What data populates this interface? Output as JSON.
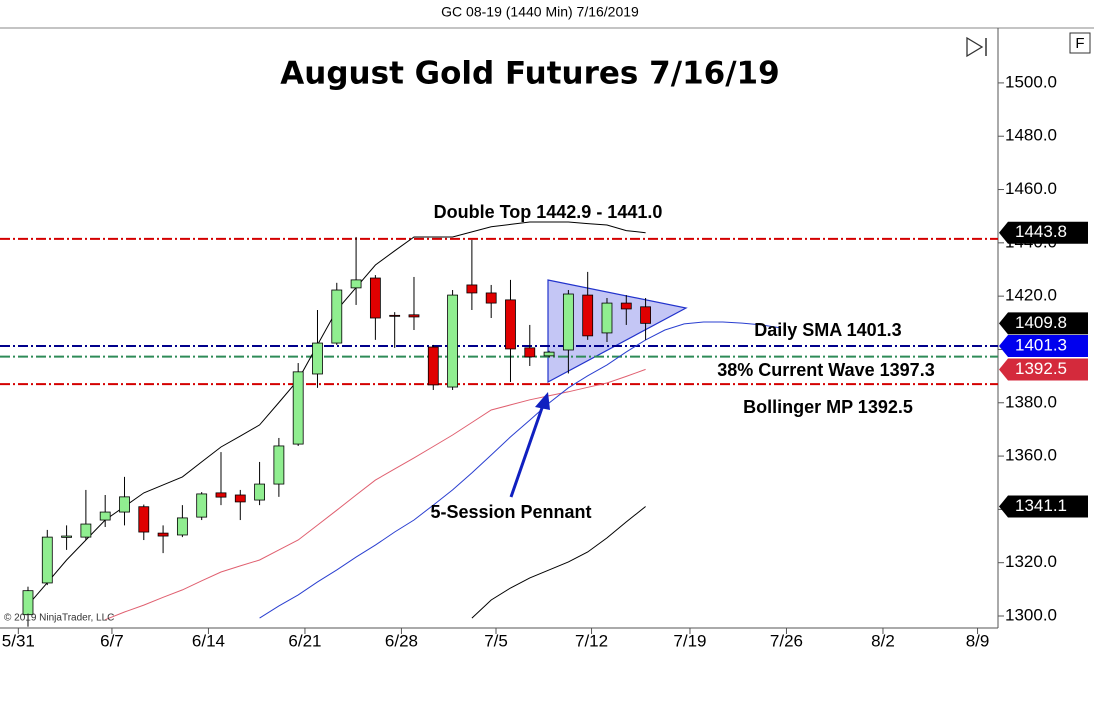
{
  "chart_data": {
    "type": "candlestick",
    "header": "GC 08-19 (1440 Min)  7/16/2019",
    "title": "August Gold Futures 7/16/19",
    "copyright": "© 2019 NinjaTrader, LLC",
    "panel_button": "F",
    "ylim": [
      1295.5,
      1520.6
    ],
    "yticks": [
      {
        "value": 1300,
        "label": "1300.0"
      },
      {
        "value": 1320,
        "label": "1320.0"
      },
      {
        "value": 1340,
        "label": "1340.0"
      },
      {
        "value": 1360,
        "label": "1360.0"
      },
      {
        "value": 1380,
        "label": "1380.0"
      },
      {
        "value": 1400,
        "label": "1400.0"
      },
      {
        "value": 1420,
        "label": "1420.0"
      },
      {
        "value": 1440,
        "label": "1440.0"
      },
      {
        "value": 1460,
        "label": "1460.0"
      },
      {
        "value": 1480,
        "label": "1480.0"
      },
      {
        "value": 1500,
        "label": "1500.0"
      }
    ],
    "xlim": [
      -1.45,
      50.26
    ],
    "xticks": [
      {
        "value": -0.5,
        "label": "5/31"
      },
      {
        "value": 4.35,
        "label": "6/7"
      },
      {
        "value": 9.35,
        "label": "6/14"
      },
      {
        "value": 14.35,
        "label": "6/21"
      },
      {
        "value": 19.35,
        "label": "6/28"
      },
      {
        "value": 24.25,
        "label": "7/5"
      },
      {
        "value": 29.2,
        "label": "7/12"
      },
      {
        "value": 34.3,
        "label": "7/19"
      },
      {
        "value": 39.3,
        "label": "7/26"
      },
      {
        "value": 44.3,
        "label": "8/2"
      },
      {
        "value": 49.2,
        "label": "8/9"
      }
    ],
    "up_color": "#90ee90",
    "down_color": "#e00000",
    "open": [
      1300.5,
      1312.4,
      1329.5,
      1329.6,
      1336,
      1339,
      1341,
      1331.1,
      1330.4,
      1337.1,
      1346.2,
      1345.4,
      1343.5,
      1349.5,
      1364.5,
      1390.8,
      1402.4,
      1423.1,
      1426.8,
      1412.8,
      1413,
      1400.9,
      1385.9,
      1424.2,
      1421.2,
      1418.6,
      1400.6,
      1397.6,
      1399.8,
      1420.4,
      1406.2,
      1417.4,
      1416
    ],
    "high": [
      1311,
      1332.3,
      1334,
      1347.3,
      1345.4,
      1352.2,
      1341.8,
      1334,
      1341.6,
      1346.5,
      1361.5,
      1347.3,
      1357.8,
      1366.8,
      1394.9,
      1414.8,
      1425,
      1442.2,
      1427.9,
      1414,
      1427.2,
      1401.7,
      1422.3,
      1441.1,
      1424.2,
      1426.1,
      1409.2,
      1399.5,
      1422.3,
      1429.1,
      1419.3,
      1420.4,
      1419.3
    ],
    "low": [
      1296,
      1311.6,
      1324.8,
      1328.5,
      1333.4,
      1334,
      1328.5,
      1323.6,
      1329.6,
      1336,
      1341.6,
      1336,
      1341.6,
      1344.7,
      1363.8,
      1385.6,
      1401.7,
      1416.7,
      1403.6,
      1400.6,
      1407.3,
      1384.8,
      1384.8,
      1414.8,
      1411.8,
      1387.8,
      1393.8,
      1397,
      1391,
      1403.6,
      1402.8,
      1409.2,
      1403.6
    ],
    "close": [
      1309.5,
      1329.6,
      1330,
      1334.5,
      1339,
      1344.7,
      1331.5,
      1330,
      1336.8,
      1345.8,
      1344.6,
      1342.8,
      1349.5,
      1363.8,
      1391.6,
      1402.4,
      1422.3,
      1426.1,
      1411.8,
      1412.6,
      1412.2,
      1386.7,
      1420.4,
      1421.2,
      1417.4,
      1400.2,
      1397.2,
      1399,
      1420.8,
      1405.1,
      1417.4,
      1415.2,
      1409.8
    ],
    "series": [
      {
        "color": "#000000",
        "values": [
          1304.1,
          1312.5,
          1321.0,
          1328.5,
          1336.0,
          1341.1,
          1346.2,
          1349.2,
          1352.2,
          1357.8,
          1363.4,
          1367.5,
          1371.7,
          1380.1,
          1388.6,
          1401.7,
          1414.8,
          1423.2,
          1431.7,
          1437.0,
          1442.2,
          1442.2,
          1442.2,
          1444.1,
          1446.0,
          1446.9,
          1447.8,
          1447.8,
          1447.8,
          1447.2,
          1446.7,
          1444.6,
          1443.8,
          null,
          null,
          null,
          null,
          null,
          null,
          null
        ]
      },
      {
        "color": "#e06070",
        "values": [
          null,
          null,
          null,
          null,
          1298.6,
          1301.5,
          1304.1,
          1307.0,
          1309.8,
          1313.2,
          1316.5,
          1318.8,
          1321.0,
          1324.8,
          1328.5,
          1334.1,
          1339.7,
          1345.4,
          1351.0,
          1355.2,
          1359.3,
          1363.6,
          1367.9,
          1372.6,
          1377.3,
          1379.2,
          1381.1,
          1382.6,
          1384.1,
          1385.8,
          1387.4,
          1389.9,
          1392.5,
          null,
          null,
          null,
          null,
          null,
          null,
          null
        ]
      },
      {
        "color": "#2a3fd0",
        "values": [
          null,
          null,
          null,
          null,
          null,
          null,
          null,
          null,
          null,
          null,
          null,
          null,
          1299.2,
          1303.8,
          1307.9,
          1312.8,
          1317.3,
          1322.1,
          1326.6,
          1331.5,
          1336.0,
          1341.6,
          1347.3,
          1353.7,
          1360.4,
          1367.2,
          1373.5,
          1379.9,
          1385.6,
          1390.1,
          1394.2,
          1399.1,
          1403.6,
          1407.3,
          1409.6,
          1410.3,
          1410.3,
          1409.9,
          1409.2,
          1408.1
        ]
      },
      {
        "color": "#000000",
        "values": [
          null,
          null,
          null,
          null,
          null,
          null,
          null,
          null,
          null,
          null,
          null,
          null,
          null,
          null,
          null,
          null,
          null,
          null,
          null,
          null,
          null,
          null,
          null,
          1299.2,
          1306,
          1310.5,
          1314.3,
          1317.3,
          1320.3,
          1324,
          1329.3,
          1335.3,
          1341.1,
          null,
          null,
          null,
          null,
          null,
          null,
          null
        ]
      }
    ],
    "levels": [
      {
        "value": 1441.5,
        "color": "#d40000"
      },
      {
        "value": 1401.3,
        "color": "#00008b"
      },
      {
        "value": 1397.3,
        "color": "#2e8b57"
      },
      {
        "value": 1387,
        "color": "#d40000"
      }
    ],
    "price_markers": [
      {
        "value": 1443.8,
        "color": "#000000"
      },
      {
        "value": 1409.8,
        "color": "#000000"
      },
      {
        "value": 1401.3,
        "color": "#0000ee"
      },
      {
        "value": 1392.5,
        "color": "#d42a3c"
      },
      {
        "value": 1341.1,
        "color": "#000000"
      }
    ],
    "annotations": [
      "Double Top 1442.9 - 1441.0",
      "Daily SMA 1401.3",
      "38% Current Wave 1397.3",
      "Bollinger MP 1392.5",
      "5-Session Pennant"
    ]
  }
}
